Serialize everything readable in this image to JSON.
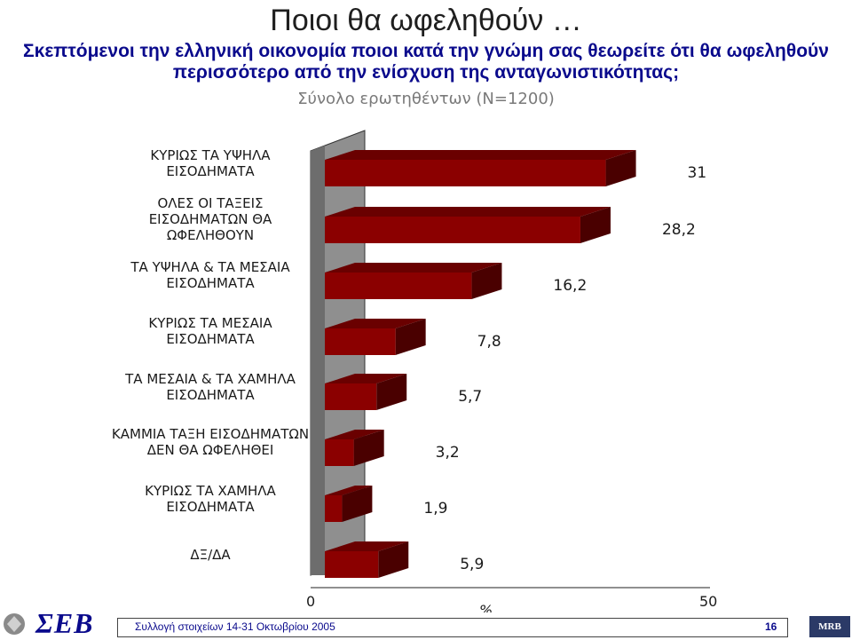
{
  "title": "Ποιοι θα ωφεληθούν …",
  "question_line1": "Σκεπτόμενοι την ελληνική οικονομία ποιοι κατά την γνώμη σας θεωρείτε ότι θα ωφεληθούν",
  "question_line2": "περισσότερο από την ενίσχυση της ανταγωνιστικότητας;",
  "base_text": "Σύνολο ερωτηθέντων (N=1200)",
  "chart_data": {
    "type": "bar",
    "orientation": "horizontal",
    "categories": [
      [
        "ΚΥΡΙΩΣ ΤΑ ΥΨΗΛΑ",
        "ΕΙΣΟΔΗΜΑΤΑ"
      ],
      [
        "ΟΛΕΣ ΟΙ ΤΑΞΕΙΣ",
        "ΕΙΣΟΔΗΜΑΤΩΝ ΘΑ",
        "ΩΦΕΛΗΘΟΥΝ"
      ],
      [
        "ΤΑ ΥΨΗΛΑ & ΤΑ ΜΕΣΑΙΑ",
        "ΕΙΣΟΔΗΜΑΤΑ"
      ],
      [
        "ΚΥΡΙΩΣ ΤΑ ΜΕΣΑΙΑ",
        "ΕΙΣΟΔΗΜΑΤΑ"
      ],
      [
        "ΤΑ ΜΕΣΑΙΑ & ΤΑ ΧΑΜΗΛΑ",
        "ΕΙΣΟΔΗΜΑΤΑ"
      ],
      [
        "ΚΑΜΜΙΑ ΤΑΞΗ ΕΙΣΟΔΗΜΑΤΩΝ",
        "ΔΕΝ ΘΑ ΩΦΕΛΗΘΕΙ"
      ],
      [
        "ΚΥΡΙΩΣ ΤΑ ΧΑΜΗΛΑ",
        "ΕΙΣΟΔΗΜΑΤΑ"
      ],
      [
        "ΔΞ/ΔΑ"
      ]
    ],
    "values": [
      31,
      28.2,
      16.2,
      7.8,
      5.7,
      3.2,
      1.9,
      5.9
    ],
    "value_labels": [
      "31",
      "28,2",
      "16,2",
      "7,8",
      "5,7",
      "3,2",
      "1,9",
      "5,9"
    ],
    "xlabel": "%",
    "xlim": [
      0,
      50
    ],
    "x_ticks": [
      "0",
      "50"
    ],
    "bar_color": "#8b0000",
    "wall_color": "#909090"
  },
  "footer": {
    "logo_text": "ΣΕΒ",
    "source_text": "Συλλογή στοιχείων 14-31 Οκτωβρίου 2005",
    "page_number": "16",
    "mrb_logo": "MRB"
  }
}
